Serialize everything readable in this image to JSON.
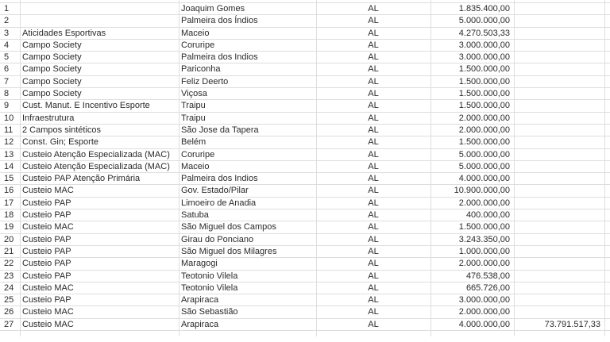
{
  "rows": [
    {
      "n": "1",
      "desc": "",
      "city": "Joaquim Gomes",
      "uf": "AL",
      "value": "1.835.400,00",
      "total": ""
    },
    {
      "n": "2",
      "desc": "",
      "city": "Palmeira dos Índios",
      "uf": "AL",
      "value": "5.000.000,00",
      "total": ""
    },
    {
      "n": "3",
      "desc": "Aticidades Esportivas",
      "city": "Maceio",
      "uf": "AL",
      "value": "4.270.503,33",
      "total": ""
    },
    {
      "n": "4",
      "desc": "Campo Society",
      "city": "Coruripe",
      "uf": "AL",
      "value": "3.000.000,00",
      "total": ""
    },
    {
      "n": "5",
      "desc": "Campo Society",
      "city": "Palmeira dos Indios",
      "uf": "AL",
      "value": "3.000.000,00",
      "total": ""
    },
    {
      "n": "6",
      "desc": "Campo Society",
      "city": "Pariconha",
      "uf": "AL",
      "value": "1.500.000,00",
      "total": ""
    },
    {
      "n": "7",
      "desc": "Campo Society",
      "city": "Feliz Deerto",
      "uf": "AL",
      "value": "1.500.000,00",
      "total": ""
    },
    {
      "n": "8",
      "desc": "Campo Society",
      "city": "Viçosa",
      "uf": "AL",
      "value": "1.500.000,00",
      "total": ""
    },
    {
      "n": "9",
      "desc": "Cust. Manut. E Incentivo Esporte",
      "city": "Traipu",
      "uf": "AL",
      "value": "1.500.000,00",
      "total": ""
    },
    {
      "n": "10",
      "desc": "Infraestrutura",
      "city": "Traipu",
      "uf": "AL",
      "value": "2.000.000,00",
      "total": ""
    },
    {
      "n": "11",
      "desc": "2 Campos sintéticos",
      "city": "São Jose da Tapera",
      "uf": "AL",
      "value": "2.000.000,00",
      "total": ""
    },
    {
      "n": "12",
      "desc": "Const. Gin; Esporte",
      "city": "Belém",
      "uf": "AL",
      "value": "1.500.000,00",
      "total": ""
    },
    {
      "n": "13",
      "desc": "Custeio Atenção Especializada (MAC)",
      "city": "Coruripe",
      "uf": "AL",
      "value": "5.000.000,00",
      "total": ""
    },
    {
      "n": "14",
      "desc": "Custeio Atenção Especializada (MAC)",
      "city": "Maceio",
      "uf": "AL",
      "value": "5.000.000,00",
      "total": ""
    },
    {
      "n": "15",
      "desc": "Custeio PAP Atenção Primária",
      "city": "Palmeira dos Indios",
      "uf": "AL",
      "value": "4.000.000,00",
      "total": ""
    },
    {
      "n": "16",
      "desc": "Custeio MAC",
      "city": "Gov. Estado/Pilar",
      "uf": "AL",
      "value": "10.900.000,00",
      "total": ""
    },
    {
      "n": "17",
      "desc": "Custeio PAP",
      "city": "Limoeiro de Anadia",
      "uf": "AL",
      "value": "2.000.000,00",
      "total": ""
    },
    {
      "n": "18",
      "desc": "Custeio PAP",
      "city": "Satuba",
      "uf": "AL",
      "value": "400.000,00",
      "total": ""
    },
    {
      "n": "19",
      "desc": "Custeio MAC",
      "city": "São Miguel dos Campos",
      "uf": "AL",
      "value": "1.500.000,00",
      "total": ""
    },
    {
      "n": "20",
      "desc": "Custeio PAP",
      "city": "Girau do Ponciano",
      "uf": "AL",
      "value": "3.243.350,00",
      "total": ""
    },
    {
      "n": "21",
      "desc": "Custeio PAP",
      "city": "São Miguel dos Milagres",
      "uf": "AL",
      "value": "1.000.000,00",
      "total": ""
    },
    {
      "n": "22",
      "desc": "Custeio PAP",
      "city": "Maragogi",
      "uf": "AL",
      "value": "2.000.000,00",
      "total": ""
    },
    {
      "n": "23",
      "desc": "Custeio PAP",
      "city": "Teotonio Vilela",
      "uf": "AL",
      "value": "476.538,00",
      "total": ""
    },
    {
      "n": "24",
      "desc": "Custeio MAC",
      "city": "Teotonio Vilela",
      "uf": "AL",
      "value": "665.726,00",
      "total": ""
    },
    {
      "n": "25",
      "desc": "Custeio PAP",
      "city": "Arapiraca",
      "uf": "AL",
      "value": "3.000.000,00",
      "total": ""
    },
    {
      "n": "26",
      "desc": "Custeio MAC",
      "city": "São Sebastião",
      "uf": "AL",
      "value": "2.000.000,00",
      "total": ""
    },
    {
      "n": "27",
      "desc": "Custeio MAC",
      "city": "Arapiraca",
      "uf": "AL",
      "value": "4.000.000,00",
      "total": "73.791.517,33"
    }
  ]
}
